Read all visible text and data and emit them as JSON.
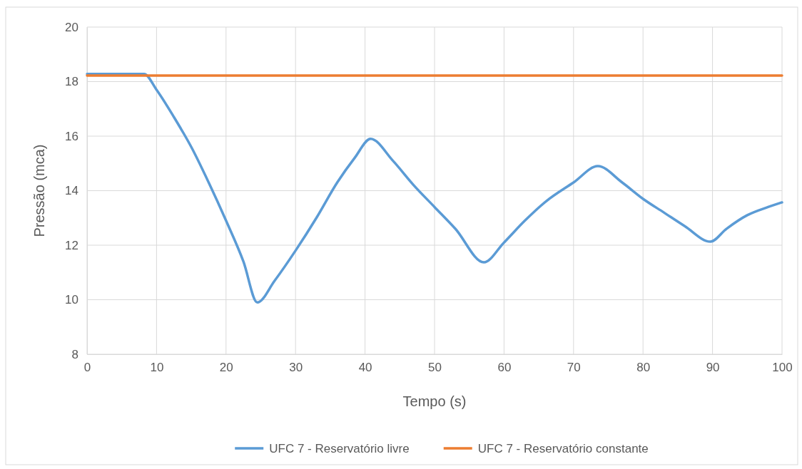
{
  "chart_data": {
    "type": "line",
    "xlabel": "Tempo (s)",
    "ylabel": "Pressão (mca)",
    "xlim": [
      0,
      100
    ],
    "xticks": [
      0,
      10,
      20,
      30,
      40,
      50,
      60,
      70,
      80,
      90,
      100
    ],
    "ylim": [
      8,
      20
    ],
    "yticks": [
      8,
      10,
      12,
      14,
      16,
      18,
      20
    ],
    "grid": true,
    "legend": "bottom",
    "marker": "none",
    "line_style": "solid",
    "series": [
      {
        "name": "UFC 7 - Reservatório livre",
        "color": "#5b9bd5",
        "x": [
          0,
          8.2,
          10,
          12.5,
          15,
          17.5,
          20,
          22.5,
          24.5,
          27,
          30,
          33,
          36,
          38.5,
          40.8,
          44,
          47,
          50,
          53,
          57.1,
          60,
          63,
          66,
          70,
          73.5,
          77,
          80,
          83,
          86,
          89.7,
          92,
          95,
          98,
          100
        ],
        "values": [
          18.28,
          18.28,
          17.7,
          16.7,
          15.6,
          14.3,
          12.9,
          11.4,
          9.9,
          10.7,
          11.8,
          13,
          14.3,
          15.2,
          15.9,
          15.1,
          14.2,
          13.4,
          12.6,
          11.37,
          12.1,
          12.9,
          13.6,
          14.3,
          14.9,
          14.3,
          13.7,
          13.2,
          12.7,
          12.13,
          12.6,
          13.1,
          13.4,
          13.57
        ]
      },
      {
        "name": "UFC 7 - Reservatório constante",
        "color": "#ed7d31",
        "x": [
          0,
          100
        ],
        "values": [
          18.22,
          18.22
        ]
      }
    ]
  }
}
